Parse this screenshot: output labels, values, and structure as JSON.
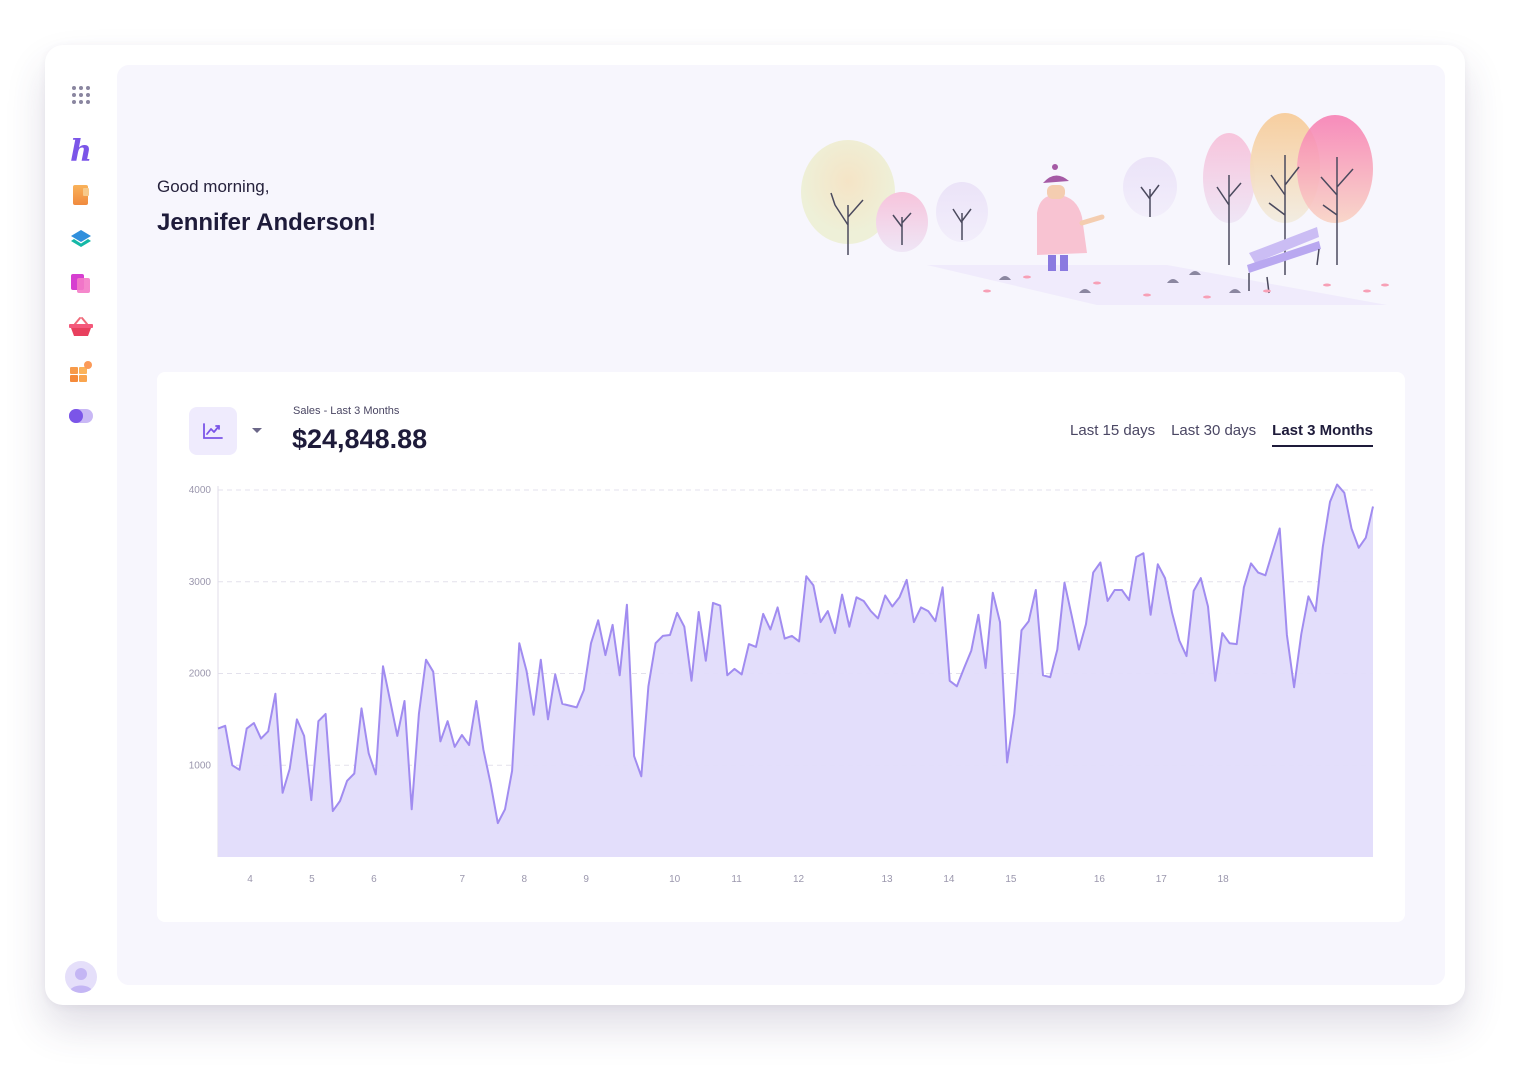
{
  "greeting": {
    "salutation": "Good morning,",
    "name": "Jennifer Anderson!"
  },
  "sidebar": {
    "items": [
      {
        "icon": "apps-grid-icon"
      },
      {
        "icon": "brand-logo",
        "glyph": "h"
      },
      {
        "icon": "document-icon"
      },
      {
        "icon": "layers-icon"
      },
      {
        "icon": "pages-icon"
      },
      {
        "icon": "basket-icon"
      },
      {
        "icon": "widgets-icon"
      },
      {
        "icon": "toggle-icon"
      }
    ],
    "avatar_icon": "user-avatar-icon"
  },
  "sales": {
    "label": "Sales - Last 3 Months",
    "value": "$24,848.88",
    "chart_icon": "trend-chart-icon",
    "range_tabs": [
      {
        "label": "Last 15 days",
        "active": false
      },
      {
        "label": "Last 30 days",
        "active": false
      },
      {
        "label": "Last 3 Months",
        "active": true
      }
    ]
  },
  "colors": {
    "accent": "#7b55e8",
    "line": "#a18cf0",
    "fill": "#e2dcfb",
    "background": "#f7f6fd",
    "text": "#1e1b3a"
  },
  "chart_data": {
    "type": "area",
    "series": [
      {
        "values": [
          1400,
          1430,
          1000,
          950,
          1400,
          1460,
          1290,
          1370,
          1780,
          700,
          960,
          1500,
          1320,
          620,
          1480,
          1560,
          500,
          610,
          830,
          910,
          1620,
          1130,
          900,
          2080,
          1700,
          1320,
          1700,
          520,
          1560,
          2150,
          2020,
          1260,
          1480,
          1200,
          1330,
          1220,
          1700,
          1170,
          800,
          370,
          520,
          940,
          2330,
          2030,
          1550,
          2150,
          1500,
          1990,
          1670,
          1650,
          1630,
          1820,
          2330,
          2580,
          2200,
          2530,
          1980,
          2750,
          1100,
          880,
          1860,
          2330,
          2410,
          2420,
          2660,
          2510,
          1920,
          2670,
          2140,
          2770,
          2740,
          1980,
          2050,
          1990,
          2320,
          2290,
          2650,
          2480,
          2720,
          2380,
          2410,
          2350,
          3060,
          2960,
          2560,
          2680,
          2440,
          2860,
          2510,
          2830,
          2790,
          2680,
          2600,
          2850,
          2730,
          2830,
          3020,
          2560,
          2720,
          2680,
          2570,
          2940,
          1920,
          1860,
          2060,
          2250,
          2640,
          2060,
          2880,
          2560,
          1030,
          1560,
          2470,
          2570,
          2910,
          1980,
          1960,
          2260,
          2990,
          2630,
          2260,
          2540,
          3100,
          3210,
          2790,
          2910,
          2910,
          2800,
          3270,
          3310,
          2640,
          3190,
          3040,
          2660,
          2360,
          2190,
          2900,
          3040,
          2730,
          1920,
          2440,
          2330,
          2320,
          2940,
          3200,
          3100,
          3070,
          3330,
          3580,
          2420,
          1850,
          2430,
          2840,
          2680,
          3380,
          3870,
          4060,
          3970,
          3580,
          3370,
          3480,
          3820
        ]
      }
    ],
    "x_ticks": [
      "4",
      "5",
      "6",
      "7",
      "8",
      "9",
      "10",
      "11",
      "12",
      "13",
      "14",
      "15",
      "16",
      "17",
      "18"
    ],
    "y_ticks": [
      "1000",
      "2000",
      "3000",
      "4000"
    ],
    "ylim": [
      0,
      4000
    ],
    "grid": "horizontal-dashed"
  }
}
